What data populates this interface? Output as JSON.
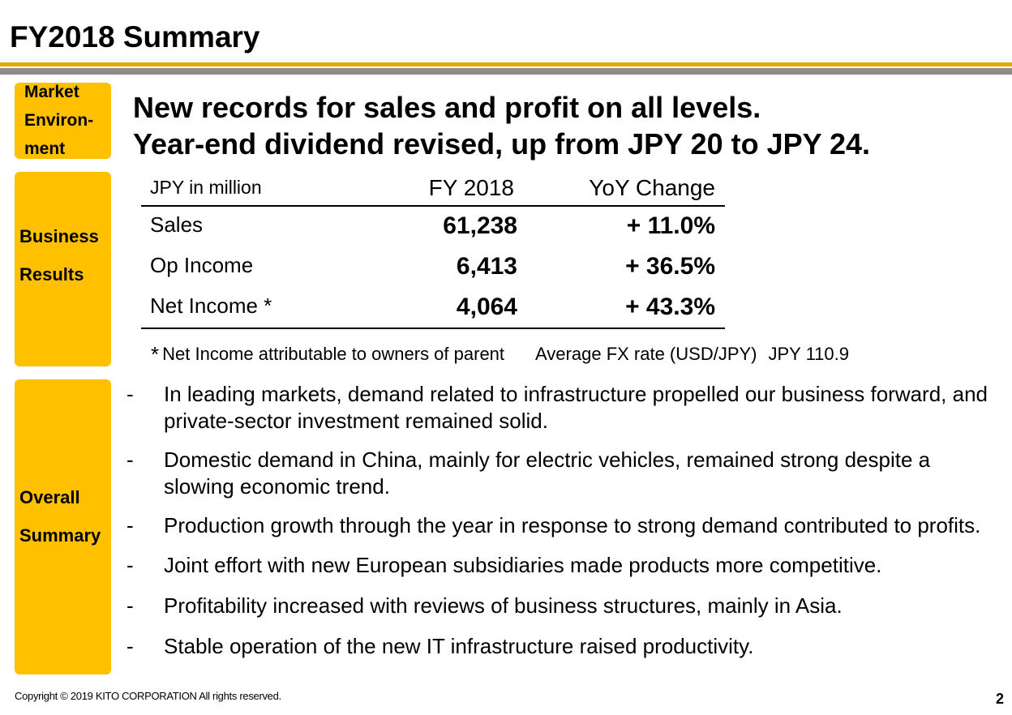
{
  "title": "FY2018 Summary",
  "sidebar": {
    "market": [
      "Market",
      "Environ-",
      "ment"
    ],
    "business": [
      "Business",
      "Results"
    ],
    "overall": [
      "Overall",
      "Summary"
    ]
  },
  "headline": [
    "New records for sales and profit on all levels.",
    "Year-end dividend revised, up from JPY 20 to JPY 24."
  ],
  "results": {
    "headers": [
      "JPY in million",
      "FY 2018",
      "YoY Change"
    ],
    "rows": [
      {
        "label": "Sales",
        "value": "61,238",
        "change": "+ 11.0%"
      },
      {
        "label": "Op Income",
        "value": "6,413",
        "change": "+ 36.5%"
      },
      {
        "label": "Net Income *",
        "value": "4,064",
        "change": "+ 43.3%"
      }
    ]
  },
  "note": {
    "star": "*",
    "text": "Net Income attributable to owners of parent",
    "fx_label": "Average FX rate (USD/JPY)",
    "fx_value": "JPY 110.9"
  },
  "bullets": [
    {
      "dash": "-",
      "text": "In leading markets, demand related to infrastructure propelled our business forward, and private-sector investment remained solid."
    },
    {
      "dash": "-",
      "text": "Domestic demand in China, mainly for electric vehicles, remained strong despite a slowing economic trend."
    },
    {
      "dash": "-",
      "text": "Production growth through the year in response to strong demand contributed to profits."
    },
    {
      "dash": "-",
      "text": "Joint effort with new European subsidiaries made products more competitive."
    },
    {
      "dash": "-",
      "text": "Profitability increased with reviews of business structures, mainly in Asia."
    },
    {
      "dash": "-",
      "text": "Stable operation of the new IT infrastructure raised productivity."
    }
  ],
  "footer": {
    "copyright": "Copyright © 2019  KITO CORPORATION  All rights reserved.",
    "page": "2"
  },
  "colors": {
    "accent": "#ffc000",
    "rule_gold": "#e2ab00",
    "rule_gray": "#8c8c8c"
  }
}
